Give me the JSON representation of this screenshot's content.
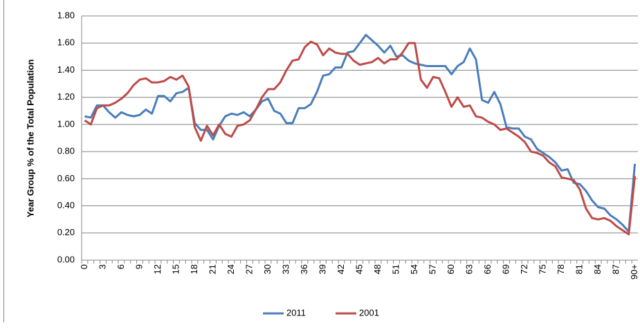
{
  "chart_data": {
    "type": "line",
    "y_label": "Year Group % of the Total Population",
    "categories": [
      "0",
      null,
      null,
      "3",
      null,
      null,
      "6",
      null,
      null,
      "9",
      null,
      null,
      "12",
      null,
      null,
      "15",
      null,
      null,
      "18",
      null,
      null,
      "21",
      null,
      null,
      "24",
      null,
      null,
      "27",
      null,
      null,
      "30",
      null,
      null,
      "33",
      null,
      null,
      "36",
      null,
      null,
      "39",
      null,
      null,
      "42",
      null,
      null,
      "45",
      null,
      null,
      "48",
      null,
      null,
      "51",
      null,
      null,
      "54",
      null,
      null,
      "57",
      null,
      null,
      "60",
      null,
      null,
      "63",
      null,
      null,
      "66",
      null,
      null,
      "69",
      null,
      null,
      "72",
      null,
      null,
      "75",
      null,
      null,
      "78",
      null,
      null,
      "81",
      null,
      null,
      "84",
      null,
      null,
      "87",
      null,
      null,
      "90+"
    ],
    "series": [
      {
        "name": "2011",
        "color": "#4a7ebb",
        "values": [
          1.06,
          1.05,
          1.14,
          1.14,
          1.09,
          1.05,
          1.09,
          1.07,
          1.06,
          1.07,
          1.11,
          1.08,
          1.21,
          1.21,
          1.17,
          1.23,
          1.24,
          1.27,
          1.01,
          0.96,
          0.96,
          0.89,
          0.99,
          1.06,
          1.08,
          1.07,
          1.09,
          1.06,
          1.11,
          1.17,
          1.19,
          1.1,
          1.08,
          1.01,
          1.01,
          1.12,
          1.12,
          1.15,
          1.24,
          1.36,
          1.37,
          1.42,
          1.42,
          1.53,
          1.54,
          1.6,
          1.66,
          1.62,
          1.58,
          1.53,
          1.58,
          1.5,
          1.51,
          1.47,
          1.45,
          1.44,
          1.43,
          1.43,
          1.43,
          1.43,
          1.37,
          1.43,
          1.46,
          1.56,
          1.48,
          1.18,
          1.16,
          1.24,
          1.15,
          0.98,
          0.97,
          0.97,
          0.91,
          0.89,
          0.82,
          0.79,
          0.76,
          0.72,
          0.66,
          0.67,
          0.57,
          0.56,
          0.51,
          0.44,
          0.39,
          0.38,
          0.33,
          0.3,
          0.26,
          0.21,
          0.71
        ]
      },
      {
        "name": "2001",
        "color": "#be4b48",
        "values": [
          1.03,
          1.0,
          1.12,
          1.14,
          1.14,
          1.16,
          1.19,
          1.23,
          1.29,
          1.33,
          1.34,
          1.31,
          1.31,
          1.32,
          1.35,
          1.33,
          1.36,
          1.28,
          0.98,
          0.88,
          0.99,
          0.92,
          1.0,
          0.93,
          0.91,
          0.99,
          1.0,
          1.03,
          1.11,
          1.2,
          1.26,
          1.26,
          1.31,
          1.4,
          1.47,
          1.48,
          1.57,
          1.61,
          1.59,
          1.51,
          1.56,
          1.53,
          1.52,
          1.52,
          1.47,
          1.44,
          1.45,
          1.46,
          1.49,
          1.45,
          1.48,
          1.48,
          1.53,
          1.6,
          1.6,
          1.33,
          1.27,
          1.35,
          1.34,
          1.24,
          1.13,
          1.2,
          1.13,
          1.14,
          1.06,
          1.05,
          1.02,
          1.0,
          0.96,
          0.97,
          0.94,
          0.91,
          0.87,
          0.8,
          0.79,
          0.77,
          0.72,
          0.69,
          0.61,
          0.6,
          0.59,
          0.52,
          0.38,
          0.31,
          0.3,
          0.31,
          0.29,
          0.25,
          0.22,
          0.19,
          0.62
        ]
      }
    ],
    "ylim": [
      0,
      1.8
    ],
    "yticks": [
      {
        "value": 0,
        "label": "0.00"
      },
      {
        "value": 0.2,
        "label": "0.20"
      },
      {
        "value": 0.4,
        "label": "0.40"
      },
      {
        "value": 0.6,
        "label": "0.60"
      },
      {
        "value": 0.8,
        "label": "0.80"
      },
      {
        "value": 1,
        "label": "1.00"
      },
      {
        "value": 1.2,
        "label": "1.20"
      },
      {
        "value": 1.4,
        "label": "1.40"
      },
      {
        "value": 1.6,
        "label": "1.60"
      },
      {
        "value": 1.8,
        "label": "1.80"
      }
    ],
    "grid": true,
    "legend": "bottom"
  }
}
